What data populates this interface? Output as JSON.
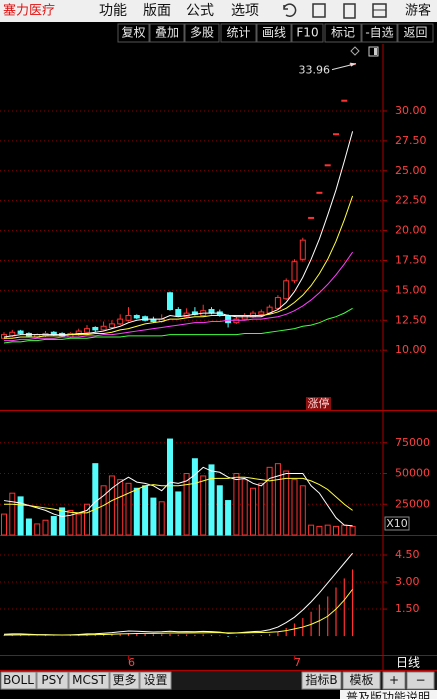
{
  "app_bar": {
    "stock_name": "塞力医疗",
    "menu": [
      "功能",
      "版面",
      "公式",
      "选项"
    ],
    "user": "游客"
  },
  "toolbar": [
    "复权",
    "叠加",
    "多股",
    "统计",
    "画线",
    "F10",
    "标记",
    "-自选",
    "返回"
  ],
  "period": "日线",
  "tabs": [
    "BOLL",
    "PSY",
    "MCST",
    "更多",
    "设置"
  ],
  "right_tabs": [
    "指标B",
    "模板",
    "+",
    "−"
  ],
  "footer": "普及版功能说明",
  "chart_data": [
    {
      "type": "candlestick",
      "categories": [
        null,
        null,
        null,
        null,
        null,
        null,
        null,
        null,
        null,
        null,
        null,
        null,
        null,
        null,
        null,
        "6",
        null,
        null,
        null,
        null,
        null,
        null,
        null,
        null,
        null,
        null,
        null,
        null,
        null,
        null,
        null,
        null,
        null,
        null,
        null,
        "7",
        null,
        null,
        null,
        null,
        null,
        null,
        null
      ],
      "open": [
        11.0,
        11.2,
        11.6,
        11.4,
        11.1,
        11.2,
        11.5,
        11.4,
        11.1,
        11.3,
        11.5,
        11.9,
        11.7,
        11.9,
        12.2,
        12.5,
        12.9,
        12.8,
        12.6,
        12.4,
        14.8,
        13.4,
        12.8,
        13.2,
        12.9,
        13.4,
        13.2,
        12.9,
        12.3,
        12.6,
        12.8,
        13.0,
        13.1,
        13.5,
        14.3,
        15.8,
        17.6,
        21.1,
        23.2,
        25.5,
        28.1,
        30.9,
        33.96
      ],
      "high": [
        11.5,
        11.7,
        11.7,
        11.5,
        11.4,
        11.6,
        11.6,
        11.5,
        11.5,
        11.8,
        12.1,
        12.0,
        12.4,
        12.5,
        13.0,
        13.6,
        13.0,
        12.9,
        12.8,
        13.0,
        14.9,
        13.6,
        13.5,
        13.6,
        13.8,
        13.6,
        13.4,
        13.0,
        12.8,
        13.1,
        13.3,
        13.4,
        13.8,
        14.6,
        16.0,
        17.6,
        19.4,
        21.1,
        23.2,
        25.5,
        28.1,
        30.9,
        33.96
      ],
      "low": [
        10.9,
        11.1,
        11.3,
        11.1,
        11.0,
        11.1,
        11.2,
        11.1,
        11.0,
        11.2,
        11.4,
        11.5,
        11.6,
        11.8,
        12.1,
        12.4,
        12.6,
        12.4,
        12.3,
        12.3,
        13.3,
        12.8,
        12.7,
        12.9,
        12.8,
        13.0,
        12.8,
        11.9,
        12.2,
        12.5,
        12.7,
        12.9,
        13.0,
        13.4,
        14.2,
        15.6,
        17.4,
        21.1,
        23.2,
        25.5,
        28.1,
        30.9,
        33.96
      ],
      "close": [
        11.3,
        11.5,
        11.4,
        11.2,
        11.3,
        11.4,
        11.3,
        11.2,
        11.4,
        11.6,
        11.8,
        11.7,
        12.0,
        12.2,
        12.6,
        12.9,
        12.7,
        12.5,
        12.4,
        12.6,
        13.4,
        12.9,
        13.1,
        13.0,
        13.3,
        13.1,
        12.9,
        12.3,
        12.6,
        12.9,
        13.1,
        13.2,
        13.6,
        14.4,
        15.8,
        17.4,
        19.2,
        21.1,
        23.2,
        25.5,
        28.1,
        30.9,
        33.96
      ],
      "series": [
        {
          "color": "#ffffff",
          "values": [
            11.1,
            11.2,
            11.3,
            11.3,
            11.3,
            11.3,
            11.3,
            11.3,
            11.3,
            11.4,
            11.4,
            11.5,
            11.6,
            11.8,
            12.0,
            12.3,
            12.5,
            12.6,
            12.6,
            12.6,
            12.9,
            12.8,
            12.9,
            13.0,
            13.1,
            13.1,
            13.1,
            12.9,
            12.8,
            12.8,
            12.8,
            12.8,
            13.1,
            13.4,
            14.0,
            14.9,
            16.1,
            17.6,
            19.3,
            21.3,
            23.4,
            25.8,
            28.3
          ]
        },
        {
          "color": "#ffff40",
          "values": [
            11.0,
            11.0,
            11.1,
            11.1,
            11.1,
            11.2,
            11.2,
            11.2,
            11.3,
            11.3,
            11.3,
            11.4,
            11.4,
            11.5,
            11.7,
            11.8,
            12.0,
            12.2,
            12.3,
            12.4,
            12.6,
            12.6,
            12.7,
            12.8,
            12.8,
            12.9,
            12.9,
            12.9,
            12.9,
            12.9,
            12.9,
            12.9,
            13.0,
            13.2,
            13.5,
            14.0,
            14.6,
            15.4,
            16.4,
            17.6,
            19.1,
            20.9,
            22.9
          ]
        },
        {
          "color": "#ff40ff",
          "values": [
            10.8,
            10.8,
            10.9,
            10.9,
            11.0,
            11.0,
            11.0,
            11.1,
            11.1,
            11.1,
            11.2,
            11.2,
            11.3,
            11.3,
            11.4,
            11.5,
            11.6,
            11.7,
            11.8,
            11.9,
            12.0,
            12.1,
            12.2,
            12.3,
            12.3,
            12.4,
            12.4,
            12.5,
            12.5,
            12.5,
            12.6,
            12.6,
            12.7,
            12.8,
            13.0,
            13.3,
            13.7,
            14.2,
            14.8,
            15.5,
            16.3,
            17.2,
            18.2
          ]
        },
        {
          "color": "#40ff40",
          "values": [
            10.6,
            10.7,
            10.7,
            10.8,
            10.8,
            10.9,
            10.9,
            10.9,
            11.0,
            11.0,
            11.0,
            11.1,
            11.1,
            11.1,
            11.1,
            11.2,
            11.2,
            11.2,
            11.2,
            11.2,
            11.3,
            11.3,
            11.3,
            11.3,
            11.3,
            11.3,
            11.3,
            11.3,
            11.3,
            11.4,
            11.4,
            11.4,
            11.5,
            11.6,
            11.7,
            11.8,
            12.0,
            12.1,
            12.3,
            12.6,
            12.8,
            13.1,
            13.5
          ]
        }
      ],
      "up_color": "#ff3232",
      "down_color": "#54fcfc",
      "ylim": [
        5,
        35.6
      ],
      "yticks": [
        {
          "value": 10,
          "label": "10.00"
        },
        {
          "value": 12.5,
          "label": "12.50"
        },
        {
          "value": 15,
          "label": "15.00"
        },
        {
          "value": 17.5,
          "label": "17.50"
        },
        {
          "value": 20,
          "label": "20.00"
        },
        {
          "value": 22.5,
          "label": "22.50"
        },
        {
          "value": 25,
          "label": "25.00"
        },
        {
          "value": 27.5,
          "label": "27.50"
        },
        {
          "value": 30,
          "label": "30.00"
        }
      ],
      "grid": true,
      "max_marker": {
        "value": 33.96,
        "label": "33.96"
      },
      "annotation": "涨停"
    },
    {
      "type": "bar",
      "values": [
        17000,
        34000,
        31000,
        13000,
        9000,
        12000,
        15000,
        22000,
        20000,
        17000,
        25000,
        58000,
        40000,
        48000,
        45000,
        42000,
        38000,
        40000,
        30000,
        27000,
        78000,
        35000,
        50000,
        62000,
        48000,
        57000,
        40000,
        28000,
        50000,
        45000,
        38000,
        42000,
        55000,
        58000,
        52000,
        45000,
        40000,
        8000,
        7000,
        8000,
        7000,
        8000,
        7000
      ],
      "series": [
        {
          "color": "#ffffff",
          "values": [
            28000,
            27000,
            26000,
            24000,
            22000,
            20000,
            17000,
            15000,
            16000,
            18000,
            20000,
            27000,
            32000,
            38000,
            43000,
            47000,
            43000,
            42000,
            40000,
            36000,
            43000,
            42000,
            44000,
            49000,
            55000,
            52000,
            51000,
            47000,
            45000,
            46000,
            42000,
            40000,
            46000,
            48000,
            50000,
            50000,
            50000,
            40000,
            34000,
            24000,
            14000,
            8000,
            7500
          ]
        },
        {
          "color": "#ffff40",
          "values": [
            25000,
            25000,
            24500,
            24000,
            23000,
            22000,
            21000,
            19500,
            18500,
            18000,
            18000,
            21000,
            24000,
            28000,
            31000,
            34000,
            37000,
            40000,
            41000,
            40000,
            40000,
            40000,
            41000,
            42000,
            44000,
            46000,
            46000,
            46000,
            47000,
            47000,
            46000,
            45000,
            44000,
            45000,
            46000,
            46000,
            46000,
            44000,
            41000,
            37000,
            31000,
            25000,
            20000
          ]
        }
      ],
      "up_color": "#ff3232",
      "down_color": "#54fcfc",
      "ylim": [
        0,
        100000
      ],
      "yticks": [
        25000,
        50000,
        75000
      ],
      "grid": true,
      "unit": "X10"
    },
    {
      "type": "bar",
      "values": [
        0.05,
        0.08,
        0.06,
        0.03,
        0.02,
        0.03,
        0.02,
        0.01,
        0.03,
        0.05,
        0.07,
        0.06,
        0.09,
        0.1,
        0.14,
        0.17,
        0.15,
        0.12,
        0.1,
        0.1,
        0.12,
        0.08,
        0.09,
        0.07,
        0.09,
        0.07,
        0.04,
        -0.05,
        -0.02,
        0.02,
        0.05,
        0.06,
        0.12,
        0.25,
        0.45,
        0.7,
        1.0,
        1.35,
        1.75,
        2.2,
        2.7,
        3.2,
        3.7
      ],
      "series": [
        {
          "color": "#ffffff",
          "values": [
            0.1,
            0.12,
            0.12,
            0.1,
            0.08,
            0.08,
            0.07,
            0.06,
            0.07,
            0.09,
            0.12,
            0.13,
            0.16,
            0.19,
            0.24,
            0.28,
            0.27,
            0.25,
            0.23,
            0.24,
            0.27,
            0.24,
            0.25,
            0.24,
            0.26,
            0.25,
            0.22,
            0.15,
            0.17,
            0.21,
            0.25,
            0.27,
            0.35,
            0.5,
            0.75,
            1.05,
            1.45,
            1.9,
            2.4,
            2.95,
            3.5,
            4.05,
            4.6
          ]
        },
        {
          "color": "#ffff40",
          "values": [
            0.05,
            0.06,
            0.07,
            0.07,
            0.07,
            0.06,
            0.06,
            0.06,
            0.06,
            0.06,
            0.07,
            0.08,
            0.09,
            0.1,
            0.12,
            0.13,
            0.14,
            0.15,
            0.15,
            0.16,
            0.17,
            0.17,
            0.17,
            0.18,
            0.18,
            0.19,
            0.19,
            0.18,
            0.18,
            0.18,
            0.19,
            0.2,
            0.21,
            0.24,
            0.3,
            0.4,
            0.5,
            0.65,
            0.85,
            1.1,
            1.5,
            2.0,
            2.6
          ]
        }
      ],
      "up_color": "#ff3232",
      "down_color": "#54fcfc",
      "ylim": [
        -1.05,
        5.5
      ],
      "yticks": [
        {
          "value": 1.5,
          "label": "1.50"
        },
        {
          "value": 3,
          "label": "3.00"
        },
        {
          "value": 4.5,
          "label": "4.50"
        }
      ],
      "grid": true
    }
  ]
}
